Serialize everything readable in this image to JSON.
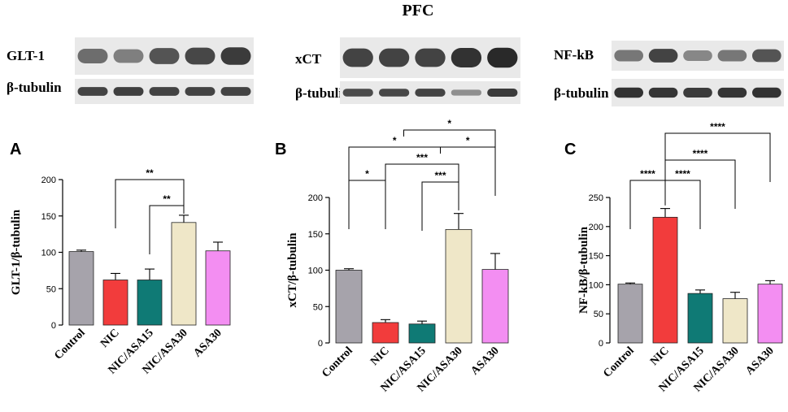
{
  "figure_title": "PFC",
  "blots": [
    {
      "target_label": "GLT-1",
      "loading_label": "β-tubulin",
      "target_intensity": [
        0.55,
        0.45,
        0.7,
        0.78,
        0.85
      ],
      "loading_intensity": [
        0.8,
        0.82,
        0.8,
        0.8,
        0.8
      ]
    },
    {
      "target_label": "xCT",
      "loading_label": "β-tubulin",
      "target_intensity": [
        0.8,
        0.8,
        0.8,
        0.9,
        0.95
      ],
      "loading_intensity": [
        0.75,
        0.78,
        0.8,
        0.35,
        0.85
      ]
    },
    {
      "target_label": "NF-kB",
      "loading_label": "β-tubulin",
      "target_intensity": [
        0.5,
        0.8,
        0.4,
        0.5,
        0.7
      ],
      "loading_intensity": [
        0.9,
        0.88,
        0.85,
        0.88,
        0.9
      ]
    }
  ],
  "colors": {
    "Control": "#a6a3ab",
    "NIC": "#f23c3c",
    "NIC/ASA15": "#0f7a75",
    "NIC/ASA30": "#efe7c8",
    "ASA30": "#f38ef2"
  },
  "chart_data": [
    {
      "panel": "A",
      "type": "bar",
      "categories": [
        "Control",
        "NIC",
        "NIC/ASA15",
        "NIC/ASA30",
        "ASA30"
      ],
      "values": [
        101,
        62,
        62,
        141,
        102
      ],
      "errors": [
        2,
        9,
        15,
        10,
        12
      ],
      "ylabel": "GLT-1/β-tubulin",
      "ylim": [
        0,
        200
      ],
      "yticks": [
        0,
        50,
        100,
        150,
        200
      ],
      "significance": [
        {
          "from": 1,
          "to": 3,
          "label": "**"
        },
        {
          "from": 2,
          "to": 3,
          "label": "**"
        }
      ]
    },
    {
      "panel": "B",
      "type": "bar",
      "categories": [
        "Control",
        "NIC",
        "NIC/ASA15",
        "NIC/ASA30",
        "ASA30"
      ],
      "values": [
        100,
        28,
        26,
        156,
        101
      ],
      "errors": [
        2,
        4,
        4,
        22,
        22
      ],
      "ylabel": "xCT/β-tubulin",
      "ylim": [
        0,
        200
      ],
      "yticks": [
        0,
        50,
        100,
        150,
        200
      ],
      "significance": [
        {
          "from": 0,
          "to": 1,
          "label": "*"
        },
        {
          "from": 2,
          "to": 3,
          "label": "***"
        },
        {
          "from": 1,
          "to": 3,
          "label": "***"
        },
        {
          "from": 0,
          "to": 2.5,
          "label": "*"
        },
        {
          "from": 2.5,
          "to": 4,
          "label": "*"
        },
        {
          "from": 1.5,
          "to": 4,
          "label": "*"
        }
      ]
    },
    {
      "panel": "C",
      "type": "bar",
      "categories": [
        "Control",
        "NIC",
        "NIC/ASA15",
        "NIC/ASA30",
        "ASA30"
      ],
      "values": [
        101,
        216,
        85,
        76,
        101
      ],
      "errors": [
        2,
        15,
        6,
        11,
        6
      ],
      "ylabel": "NF-kB/β-tubulin",
      "ylim": [
        0,
        250
      ],
      "yticks": [
        0,
        50,
        100,
        150,
        200,
        250
      ],
      "significance": [
        {
          "from": 0,
          "to": 1,
          "label": "****"
        },
        {
          "from": 1,
          "to": 2,
          "label": "****"
        },
        {
          "from": 1,
          "to": 3,
          "label": "****"
        },
        {
          "from": 1,
          "to": 4,
          "label": "****"
        }
      ]
    }
  ]
}
